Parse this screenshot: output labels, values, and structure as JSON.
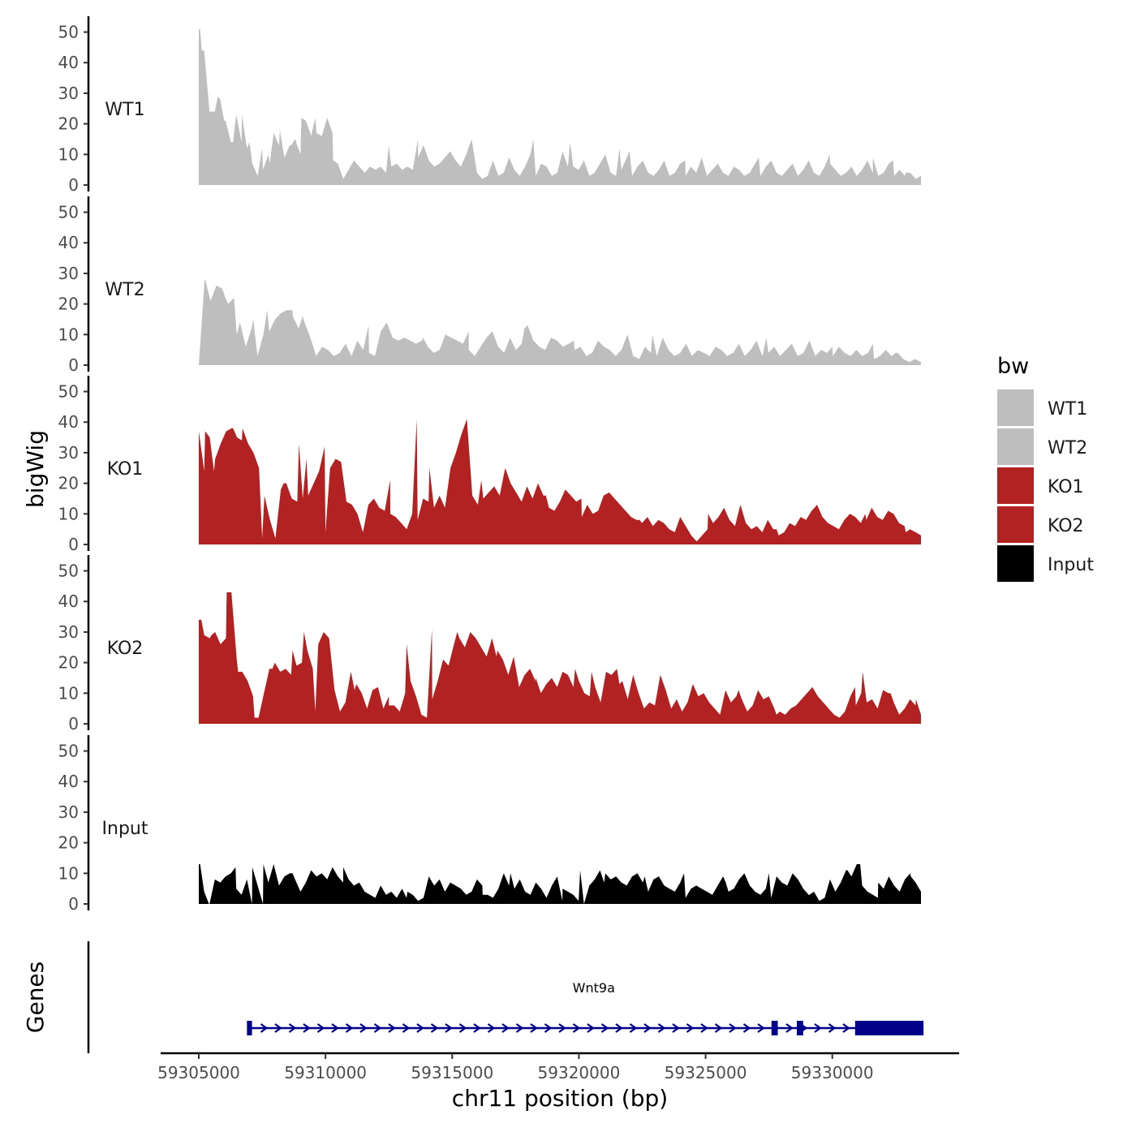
{
  "chart_data": {
    "type": "area",
    "title": "",
    "xlabel": "chr11 position (bp)",
    "ylabel": "bigWig",
    "genes_label": "Genes",
    "xlim": [
      59305000,
      59333500
    ],
    "ylim": [
      0,
      52
    ],
    "x_ticks": [
      59305000,
      59310000,
      59315000,
      59320000,
      59325000,
      59330000
    ],
    "x_tick_labels": [
      "59305000",
      "59310000",
      "59315000",
      "59320000",
      "59325000",
      "59330000"
    ],
    "y_ticks": [
      0,
      10,
      20,
      30,
      40,
      50
    ],
    "y_tick_labels": [
      "0",
      "10",
      "20",
      "30",
      "40",
      "50"
    ],
    "legend": {
      "title": "bw",
      "position": "right",
      "entries": [
        {
          "label": "WT1",
          "color": "#bebebe"
        },
        {
          "label": "WT2",
          "color": "#bebebe"
        },
        {
          "label": "KO1",
          "color": "#b22222"
        },
        {
          "label": "KO2",
          "color": "#b22222"
        },
        {
          "label": "Input",
          "color": "#000000"
        }
      ]
    },
    "x_start": 59305000,
    "x_end": 59333500,
    "series": [
      {
        "name": "WT1",
        "color": "#bebebe",
        "values": [
          51,
          44,
          24,
          24,
          28,
          21,
          14,
          23,
          14,
          12,
          7,
          3,
          5,
          10,
          17,
          13,
          9,
          13,
          15,
          10,
          21,
          16,
          17,
          16,
          22,
          17,
          7,
          2,
          5,
          8,
          6,
          4,
          6,
          5,
          6,
          4,
          6,
          7,
          5,
          6,
          5,
          9,
          13,
          8,
          6,
          7,
          9,
          11,
          8,
          6,
          10,
          15,
          4,
          2,
          3,
          8,
          3,
          4,
          9,
          5,
          3,
          6,
          10,
          3,
          7,
          6,
          3,
          4,
          11,
          6,
          6,
          5,
          8,
          3,
          4,
          7,
          10,
          4,
          3,
          5,
          9,
          3,
          6,
          8,
          4,
          3,
          5,
          8,
          3,
          4,
          7,
          3,
          6,
          4,
          9,
          3,
          5,
          7,
          4,
          3,
          6,
          5,
          3,
          4,
          7,
          3,
          6,
          8,
          4,
          3,
          5,
          7,
          3,
          5,
          8,
          4,
          3,
          6,
          7,
          5,
          3,
          4,
          6,
          3,
          5,
          8,
          4,
          3,
          4,
          7,
          3,
          5,
          3,
          4,
          2,
          3
        ],
        "markers": [
          [
            59305050,
            51
          ],
          [
            59305120,
            44
          ],
          [
            59305430,
            24
          ],
          [
            59305750,
            29
          ],
          [
            59306000,
            21
          ],
          [
            59306350,
            14
          ],
          [
            59306700,
            23
          ],
          [
            59307000,
            14
          ],
          [
            59307500,
            12
          ],
          [
            59307800,
            7
          ],
          [
            59308200,
            18
          ],
          [
            59308650,
            13
          ],
          [
            59309050,
            22
          ],
          [
            59309400,
            17
          ],
          [
            59309600,
            22
          ],
          [
            59310300,
            8
          ],
          [
            59312500,
            13
          ],
          [
            59313650,
            15
          ],
          [
            59318200,
            15
          ],
          [
            59319650,
            14
          ],
          [
            59321600,
            12
          ],
          [
            59322000,
            11
          ],
          [
            59324200,
            8
          ],
          [
            59327100,
            9
          ],
          [
            59329900,
            10
          ],
          [
            59331600,
            9
          ],
          [
            59332400,
            8
          ],
          [
            59332900,
            4
          ]
        ]
      },
      {
        "name": "WT2",
        "color": "#bebebe",
        "values": [
          0,
          28,
          21,
          26,
          25,
          20,
          22,
          14,
          6,
          12,
          3,
          10,
          11,
          15,
          17,
          18,
          16,
          12,
          14,
          9,
          3,
          6,
          5,
          3,
          4,
          7,
          3,
          8,
          5,
          4,
          3,
          11,
          14,
          9,
          8,
          9,
          8,
          7,
          8,
          6,
          4,
          5,
          10,
          9,
          8,
          7,
          5,
          3,
          6,
          9,
          11,
          6,
          4,
          9,
          5,
          7,
          13,
          8,
          6,
          5,
          9,
          8,
          6,
          7,
          5,
          6,
          3,
          4,
          8,
          6,
          5,
          3,
          5,
          10,
          3,
          2,
          6,
          4,
          3,
          9,
          5,
          3,
          4,
          7,
          3,
          5,
          4,
          3,
          6,
          5,
          3,
          4,
          7,
          3,
          5,
          8,
          3,
          4,
          6,
          3,
          5,
          7,
          3,
          4,
          8,
          3,
          5,
          4,
          3,
          6,
          4,
          3,
          5,
          3,
          4,
          2,
          3,
          5,
          3,
          4,
          2,
          1,
          2,
          1
        ],
        "markers": [
          [
            59305250,
            28
          ],
          [
            59305700,
            26
          ],
          [
            59306050,
            22
          ],
          [
            59306500,
            10
          ],
          [
            59307150,
            15
          ],
          [
            59307700,
            18
          ],
          [
            59308700,
            18
          ],
          [
            59309100,
            16
          ],
          [
            59311700,
            13
          ],
          [
            59313850,
            9
          ],
          [
            59315650,
            11
          ],
          [
            59317850,
            12
          ],
          [
            59319800,
            8
          ],
          [
            59322900,
            10
          ],
          [
            59325400,
            6
          ],
          [
            59327400,
            9
          ],
          [
            59330000,
            6
          ],
          [
            59331600,
            7
          ],
          [
            59332500,
            4
          ]
        ]
      },
      {
        "name": "KO1",
        "color": "#b22222",
        "values": [
          37,
          24,
          35,
          28,
          33,
          37,
          38,
          35,
          38,
          33,
          30,
          25,
          16,
          8,
          2,
          18,
          20,
          15,
          14,
          15,
          16,
          20,
          24,
          32,
          25,
          28,
          27,
          14,
          13,
          10,
          4,
          13,
          15,
          12,
          11,
          10,
          9,
          7,
          5,
          10,
          8,
          15,
          14,
          12,
          16,
          12,
          25,
          30,
          36,
          41,
          16,
          13,
          15,
          17,
          19,
          16,
          25,
          20,
          17,
          14,
          19,
          15,
          20,
          16,
          12,
          11,
          14,
          18,
          16,
          14,
          9,
          13,
          10,
          11,
          16,
          17,
          15,
          13,
          11,
          9,
          8,
          7,
          9,
          6,
          8,
          7,
          5,
          4,
          9,
          6,
          3,
          1,
          3,
          5,
          7,
          9,
          12,
          8,
          6,
          13,
          7,
          5,
          6,
          4,
          8,
          5,
          3,
          4,
          7,
          6,
          9,
          8,
          11,
          13,
          9,
          7,
          6,
          5,
          8,
          10,
          9,
          7,
          8,
          12,
          9,
          8,
          11,
          10,
          7,
          6,
          5,
          4,
          3
        ],
        "markers": [
          [
            59305250,
            37
          ],
          [
            59305600,
            24
          ],
          [
            59306350,
            38
          ],
          [
            59306700,
            34
          ],
          [
            59307500,
            2
          ],
          [
            59308350,
            20
          ],
          [
            59308950,
            33
          ],
          [
            59309250,
            28
          ],
          [
            59310000,
            4
          ],
          [
            59312550,
            21
          ],
          [
            59313600,
            41
          ],
          [
            59314100,
            25
          ],
          [
            59316150,
            21
          ],
          [
            59318700,
            16
          ],
          [
            59320100,
            15
          ],
          [
            59322400,
            8
          ],
          [
            59325100,
            10
          ],
          [
            59327800,
            5
          ],
          [
            59329300,
            12
          ],
          [
            59331300,
            10
          ],
          [
            59332900,
            4
          ]
        ]
      },
      {
        "name": "KO2",
        "color": "#b22222",
        "values": [
          34,
          29,
          28,
          30,
          26,
          28,
          43,
          21,
          17,
          14,
          9,
          2,
          10,
          18,
          20,
          17,
          18,
          16,
          19,
          20,
          24,
          18,
          26,
          30,
          28,
          11,
          4,
          7,
          17,
          13,
          10,
          5,
          11,
          12,
          5,
          9,
          6,
          4,
          10,
          14,
          9,
          3,
          2,
          8,
          14,
          21,
          19,
          26,
          28,
          25,
          30,
          28,
          25,
          22,
          28,
          24,
          21,
          16,
          22,
          12,
          16,
          18,
          14,
          10,
          13,
          15,
          12,
          17,
          16,
          12,
          14,
          10,
          9,
          12,
          7,
          17,
          16,
          18,
          14,
          8,
          16,
          10,
          5,
          7,
          6,
          16,
          11,
          5,
          8,
          4,
          7,
          13,
          9,
          10,
          7,
          5,
          3,
          11,
          7,
          9,
          8,
          4,
          6,
          11,
          8,
          9,
          5,
          4,
          3,
          5,
          6,
          8,
          10,
          12,
          9,
          7,
          5,
          3,
          2,
          4,
          9,
          6,
          10,
          7,
          8,
          5,
          11,
          10,
          7,
          3,
          5,
          8,
          6,
          3
        ],
        "markers": [
          [
            59305100,
            34
          ],
          [
            59305500,
            29
          ],
          [
            59306100,
            43
          ],
          [
            59306550,
            17
          ],
          [
            59307200,
            2
          ],
          [
            59307900,
            18
          ],
          [
            59308700,
            24
          ],
          [
            59309150,
            30
          ],
          [
            59309600,
            4
          ],
          [
            59311150,
            11
          ],
          [
            59312500,
            6
          ],
          [
            59313200,
            26
          ],
          [
            59314200,
            31
          ],
          [
            59315200,
            30
          ],
          [
            59316750,
            22
          ],
          [
            59318300,
            15
          ],
          [
            59319850,
            18
          ],
          [
            59320500,
            17
          ],
          [
            59321600,
            13
          ],
          [
            59323500,
            9
          ],
          [
            59326300,
            11
          ],
          [
            59327800,
            3
          ],
          [
            59329000,
            10
          ],
          [
            59330900,
            12
          ],
          [
            59331200,
            17
          ],
          [
            59332300,
            10
          ],
          [
            59333300,
            8
          ]
        ]
      },
      {
        "name": "Input",
        "color": "#000000",
        "values": [
          13,
          4,
          0,
          8,
          7,
          9,
          10,
          5,
          3,
          8,
          12,
          6,
          0,
          7,
          13,
          6,
          9,
          10,
          8,
          4,
          7,
          11,
          9,
          10,
          8,
          12,
          9,
          7,
          8,
          6,
          7,
          4,
          3,
          2,
          6,
          3,
          4,
          2,
          5,
          4,
          3,
          1,
          2,
          9,
          6,
          8,
          4,
          7,
          6,
          5,
          3,
          4,
          8,
          6,
          3,
          2,
          5,
          10,
          6,
          5,
          8,
          4,
          3,
          7,
          5,
          2,
          6,
          9,
          5,
          4,
          3,
          1,
          0,
          6,
          8,
          11,
          10,
          8,
          9,
          7,
          6,
          9,
          10,
          7,
          4,
          8,
          9,
          6,
          5,
          4,
          7,
          2,
          5,
          6,
          5,
          4,
          3,
          6,
          9,
          4,
          5,
          8,
          10,
          6,
          4,
          3,
          5,
          2,
          9,
          7,
          6,
          10,
          8,
          5,
          3,
          4,
          1,
          2,
          8,
          4,
          7,
          11,
          9,
          13,
          6,
          4,
          3,
          7,
          5,
          9,
          6,
          4,
          8,
          10,
          7,
          4
        ],
        "markers": [
          [
            59305050,
            13
          ],
          [
            59305400,
            0
          ],
          [
            59306450,
            12
          ],
          [
            59307100,
            0
          ],
          [
            59307550,
            13
          ],
          [
            59308700,
            10
          ],
          [
            59310700,
            12
          ],
          [
            59313200,
            2
          ],
          [
            59316200,
            3
          ],
          [
            59317300,
            10
          ],
          [
            59319350,
            1
          ],
          [
            59320050,
            11
          ],
          [
            59321000,
            7
          ],
          [
            59322600,
            9
          ],
          [
            59324150,
            10
          ],
          [
            59325800,
            7
          ],
          [
            59327500,
            10
          ],
          [
            59329100,
            3
          ],
          [
            59330600,
            11
          ],
          [
            59331100,
            13
          ],
          [
            59331800,
            2
          ],
          [
            59333100,
            9
          ]
        ]
      }
    ],
    "genes": [
      {
        "name": "Wnt9a",
        "strand": "+",
        "start": 59307000,
        "end": 59333600,
        "exons": [
          [
            59306900,
            59307100
          ],
          [
            59327600,
            59327850
          ],
          [
            59328600,
            59328850
          ],
          [
            59330900,
            59333600
          ]
        ]
      }
    ]
  }
}
